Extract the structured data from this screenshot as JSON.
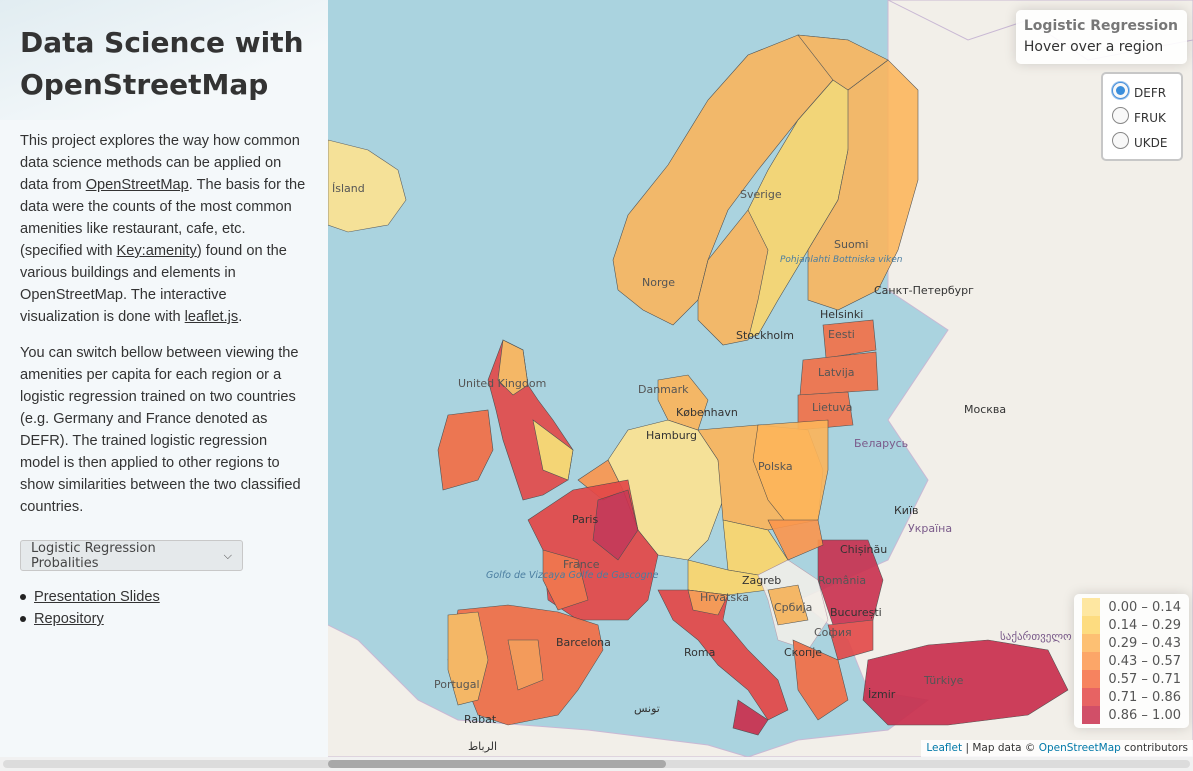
{
  "sidebar": {
    "title": "Data Science with OpenStreetMap",
    "intro": {
      "t1": "This project explores the way how common data science methods can be applied on data from ",
      "link1": "OpenStreetMap",
      "t2": ". The basis for the data were the counts of the most common amenities like restaurant, cafe, etc. (specified with ",
      "link2": "Key:amenity",
      "t3": ") found on the various buildings and elements in OpenStreetMap. The interactive visualization is done with ",
      "link3": "leaflet.js",
      "t4": "."
    },
    "para2": "You can switch bellow between viewing the amenities per capita for each region or a logistic regression trained on two countries (e.g. Germany and France denoted as DEFR). The trained logistic regression model is then applied to other regions to show similarities between the two classified countries.",
    "select_value": "Logistic Regression Probalities",
    "links": [
      "Presentation Slides",
      "Repository"
    ]
  },
  "info": {
    "title": "Logistic Regression",
    "hint": "Hover over a region"
  },
  "radios": [
    {
      "label": "DEFR",
      "checked": true
    },
    {
      "label": "FRUK",
      "checked": false
    },
    {
      "label": "UKDE",
      "checked": false
    }
  ],
  "legend": [
    {
      "label": "0.00 – 0.14",
      "color": "#fee391"
    },
    {
      "label": "0.14 – 0.29",
      "color": "#fdd66a"
    },
    {
      "label": "0.29 – 0.43",
      "color": "#fdb55a"
    },
    {
      "label": "0.43 – 0.57",
      "color": "#fb964d"
    },
    {
      "label": "0.57 – 0.71",
      "color": "#f46d43"
    },
    {
      "label": "0.71 – 0.86",
      "color": "#e34848"
    },
    {
      "label": "0.86 – 1.00",
      "color": "#c9304e"
    }
  ],
  "map_labels": {
    "sverige": "Sverige",
    "suomi": "Suomi",
    "bottniska": "Pohjanlahti Bottniska viken",
    "norge": "Norge",
    "spb": "Санкт-Петербург",
    "helsinki": "Helsinki",
    "eesti": "Eesti",
    "latvija": "Latvija",
    "lietuva": "Lietuva",
    "moskva": "Москва",
    "belarus": "Беларусь",
    "kyiv": "Київ",
    "ukraina": "Україна",
    "chisinau": "Chișinău",
    "stockholm": "Stockholm",
    "uk": "United Kingdom",
    "danmark": "Danmark",
    "kobenhavn": "København",
    "hamburg": "Hamburg",
    "polska": "Polska",
    "paris": "Paris",
    "france": "France",
    "golfo": "Golfo de Vizcaya Golfe de Gascogne",
    "zagreb": "Zagreb",
    "hrvatska": "Hrvatska",
    "srbija": "Србија",
    "romania": "România",
    "bucuresti": "București",
    "sofia": "София",
    "skopje": "Скопје",
    "roma": "Roma",
    "barcelona": "Barcelona",
    "portugal": "Portugal",
    "rabat": "Rabat",
    "rabat_ar": "الرباط",
    "tunis_ar": "تونس",
    "ukmap": "ᕚ",
    "turkiye": "Türkiye",
    "izmir": "İzmir",
    "georgia": "საქართველო",
    "island": "Ísland"
  },
  "attribution": {
    "leaflet": "Leaflet",
    "sep": " | Map data © ",
    "osm": "OpenStreetMap",
    "tail": " contributors"
  }
}
